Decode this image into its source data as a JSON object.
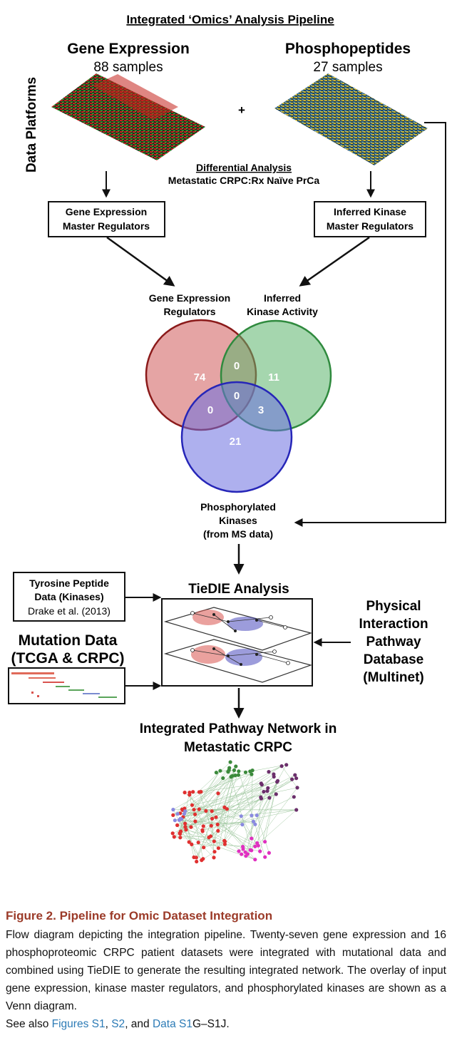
{
  "diagram": {
    "title": "Integrated ‘Omics’ Analysis Pipeline",
    "side_label": "Data Platforms",
    "platforms": {
      "gene": {
        "name": "Gene Expression",
        "samples": "88 samples"
      },
      "plus": "+",
      "phospho": {
        "name": "Phosphopeptides",
        "samples": "27 samples"
      }
    },
    "differential": {
      "title": "Differential Analysis",
      "comparison": "Metastatic CRPC:Rx Naïve PrCa"
    },
    "regulators": {
      "gene_box": {
        "line1": "Gene Expression",
        "line2": "Master Regulators"
      },
      "kinase_box": {
        "line1": "Inferred Kinase",
        "line2": "Master Regulators"
      }
    },
    "venn": {
      "label_gene": {
        "line1": "Gene Expression",
        "line2": "Regulators"
      },
      "label_kinase": {
        "line1": "Inferred",
        "line2": "Kinase Activity"
      },
      "label_phospho": {
        "line1": "Phosphorylated",
        "line2": "Kinases",
        "line3": "(from MS data)"
      },
      "counts": {
        "gene_only": "74",
        "kinase_only": "11",
        "phospho_only": "21",
        "gene_kinase": "0",
        "gene_phospho": "0",
        "kinase_phospho": "3",
        "all_three": "0"
      },
      "colors": {
        "gene": "#d05a5a",
        "kinase": "#5bb56b",
        "phospho": "#6b6fe0"
      }
    },
    "inputs": {
      "tyrosine": {
        "line1": "Tyrosine Peptide",
        "line2": "Data (Kinases)",
        "line3": "Drake et al. (2013)"
      },
      "mutation": {
        "line1": "Mutation Data",
        "line2": "(TCGA & CRPC)"
      },
      "pathway": {
        "line1": "Physical",
        "line2": "Interaction",
        "line3": "Pathway",
        "line4": "Database",
        "line5": "(Multinet)"
      }
    },
    "tiedie": {
      "title": "TieDIE Analysis"
    },
    "network": {
      "title_line1": "Integrated Pathway Network in",
      "title_line2": "Metastatic CRPC"
    }
  },
  "caption": {
    "title": "Figure 2.  Pipeline for Omic Dataset Integration",
    "body": "Flow diagram depicting the integration pipeline. Twenty-seven gene expression and 16 phosphoproteomic CRPC patient datasets were integrated with mutational data and combined using TieDIE to generate the resulting integrated network. The overlay of input gene expression, kinase master regulators, and phosphorylated kinases are shown as a Venn diagram.",
    "see_also": {
      "prefix": "See also ",
      "link1": "Figures S1",
      "sep1": ", ",
      "link2": "S2",
      "sep2": ", and ",
      "link3": "Data S1",
      "suffix": "G–S1J."
    }
  }
}
